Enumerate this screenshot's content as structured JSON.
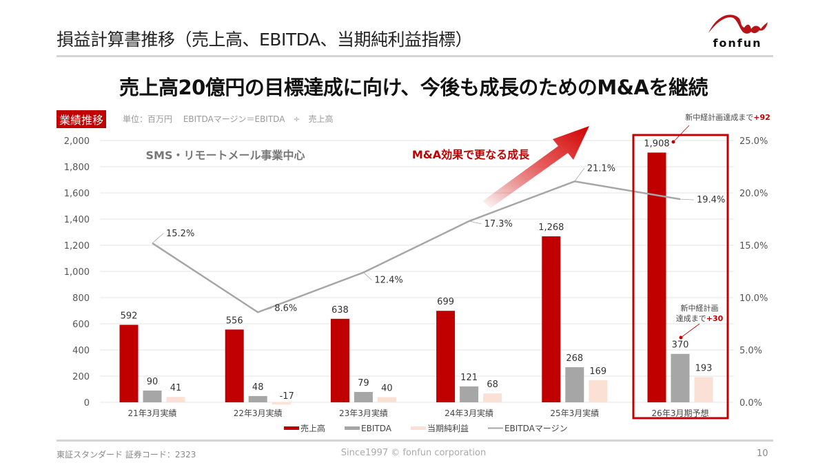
{
  "header": {
    "title": "損益計算書推移（売上高、EBITDA、当期純利益指標）",
    "headline": "売上高20億円の目標達成に向け、今後も成長のためのM&Aを継続",
    "logo_text": "fonfun"
  },
  "section": {
    "badge": "業績推移",
    "unit_note": "単位：百万円　 EBITDAマージン＝EBITDA　÷　売上高"
  },
  "annotations": {
    "sms": "SMS・リモートメール事業中心",
    "ma": "M&A効果で更なる成長",
    "target_sales_prefix": "新中経計画達成まで",
    "target_sales_value": "+92",
    "target_ebitda_line1": "新中経計画",
    "target_ebitda_line2": "達成まで",
    "target_ebitda_value": "+30"
  },
  "chart_data": {
    "type": "bar",
    "categories": [
      "21年3月実績",
      "22年3月実績",
      "23年3月実績",
      "24年3月実績",
      "25年3月実績",
      "26年3月期予想"
    ],
    "series": [
      {
        "name": "売上高",
        "type": "bar",
        "color": "#c00000",
        "values": [
          592,
          556,
          638,
          699,
          1268,
          1908
        ],
        "labels": [
          "592",
          "556",
          "638",
          "699",
          "1,268",
          "1,908"
        ]
      },
      {
        "name": "EBITDA",
        "type": "bar",
        "color": "#a6a6a6",
        "values": [
          90,
          48,
          79,
          121,
          268,
          370
        ],
        "labels": [
          "90",
          "48",
          "79",
          "121",
          "268",
          "370"
        ]
      },
      {
        "name": "当期純利益",
        "type": "bar",
        "color": "#fbe1d5",
        "values": [
          41,
          -17,
          40,
          68,
          169,
          193
        ],
        "labels": [
          "41",
          "-17",
          "40",
          "68",
          "169",
          "193"
        ]
      },
      {
        "name": "EBITDAマージン",
        "type": "line",
        "axis": "right",
        "color": "#a6a6a6",
        "values": [
          15.2,
          8.6,
          12.4,
          17.3,
          21.1,
          19.4
        ],
        "labels": [
          "15.2%",
          "8.6%",
          "12.4%",
          "17.3%",
          "21.1%",
          "19.4%"
        ]
      }
    ],
    "y_left": {
      "min": 0,
      "max": 2000,
      "ticks": [
        "0",
        "200",
        "400",
        "600",
        "800",
        "1,000",
        "1,200",
        "1,400",
        "1,600",
        "1,800",
        "2,000"
      ]
    },
    "y_right": {
      "min": 0,
      "max": 25,
      "ticks": [
        "0.0%",
        "5.0%",
        "10.0%",
        "15.0%",
        "20.0%",
        "25.0%"
      ]
    },
    "grid": true,
    "legend_position": "bottom",
    "highlight_category": "26年3月期予想",
    "accent_color": "#c00000"
  },
  "footer": {
    "market": "東証スタンダード 証券コード：2323",
    "copyright": "Since1997 © fonfun corporation",
    "page": "10"
  }
}
